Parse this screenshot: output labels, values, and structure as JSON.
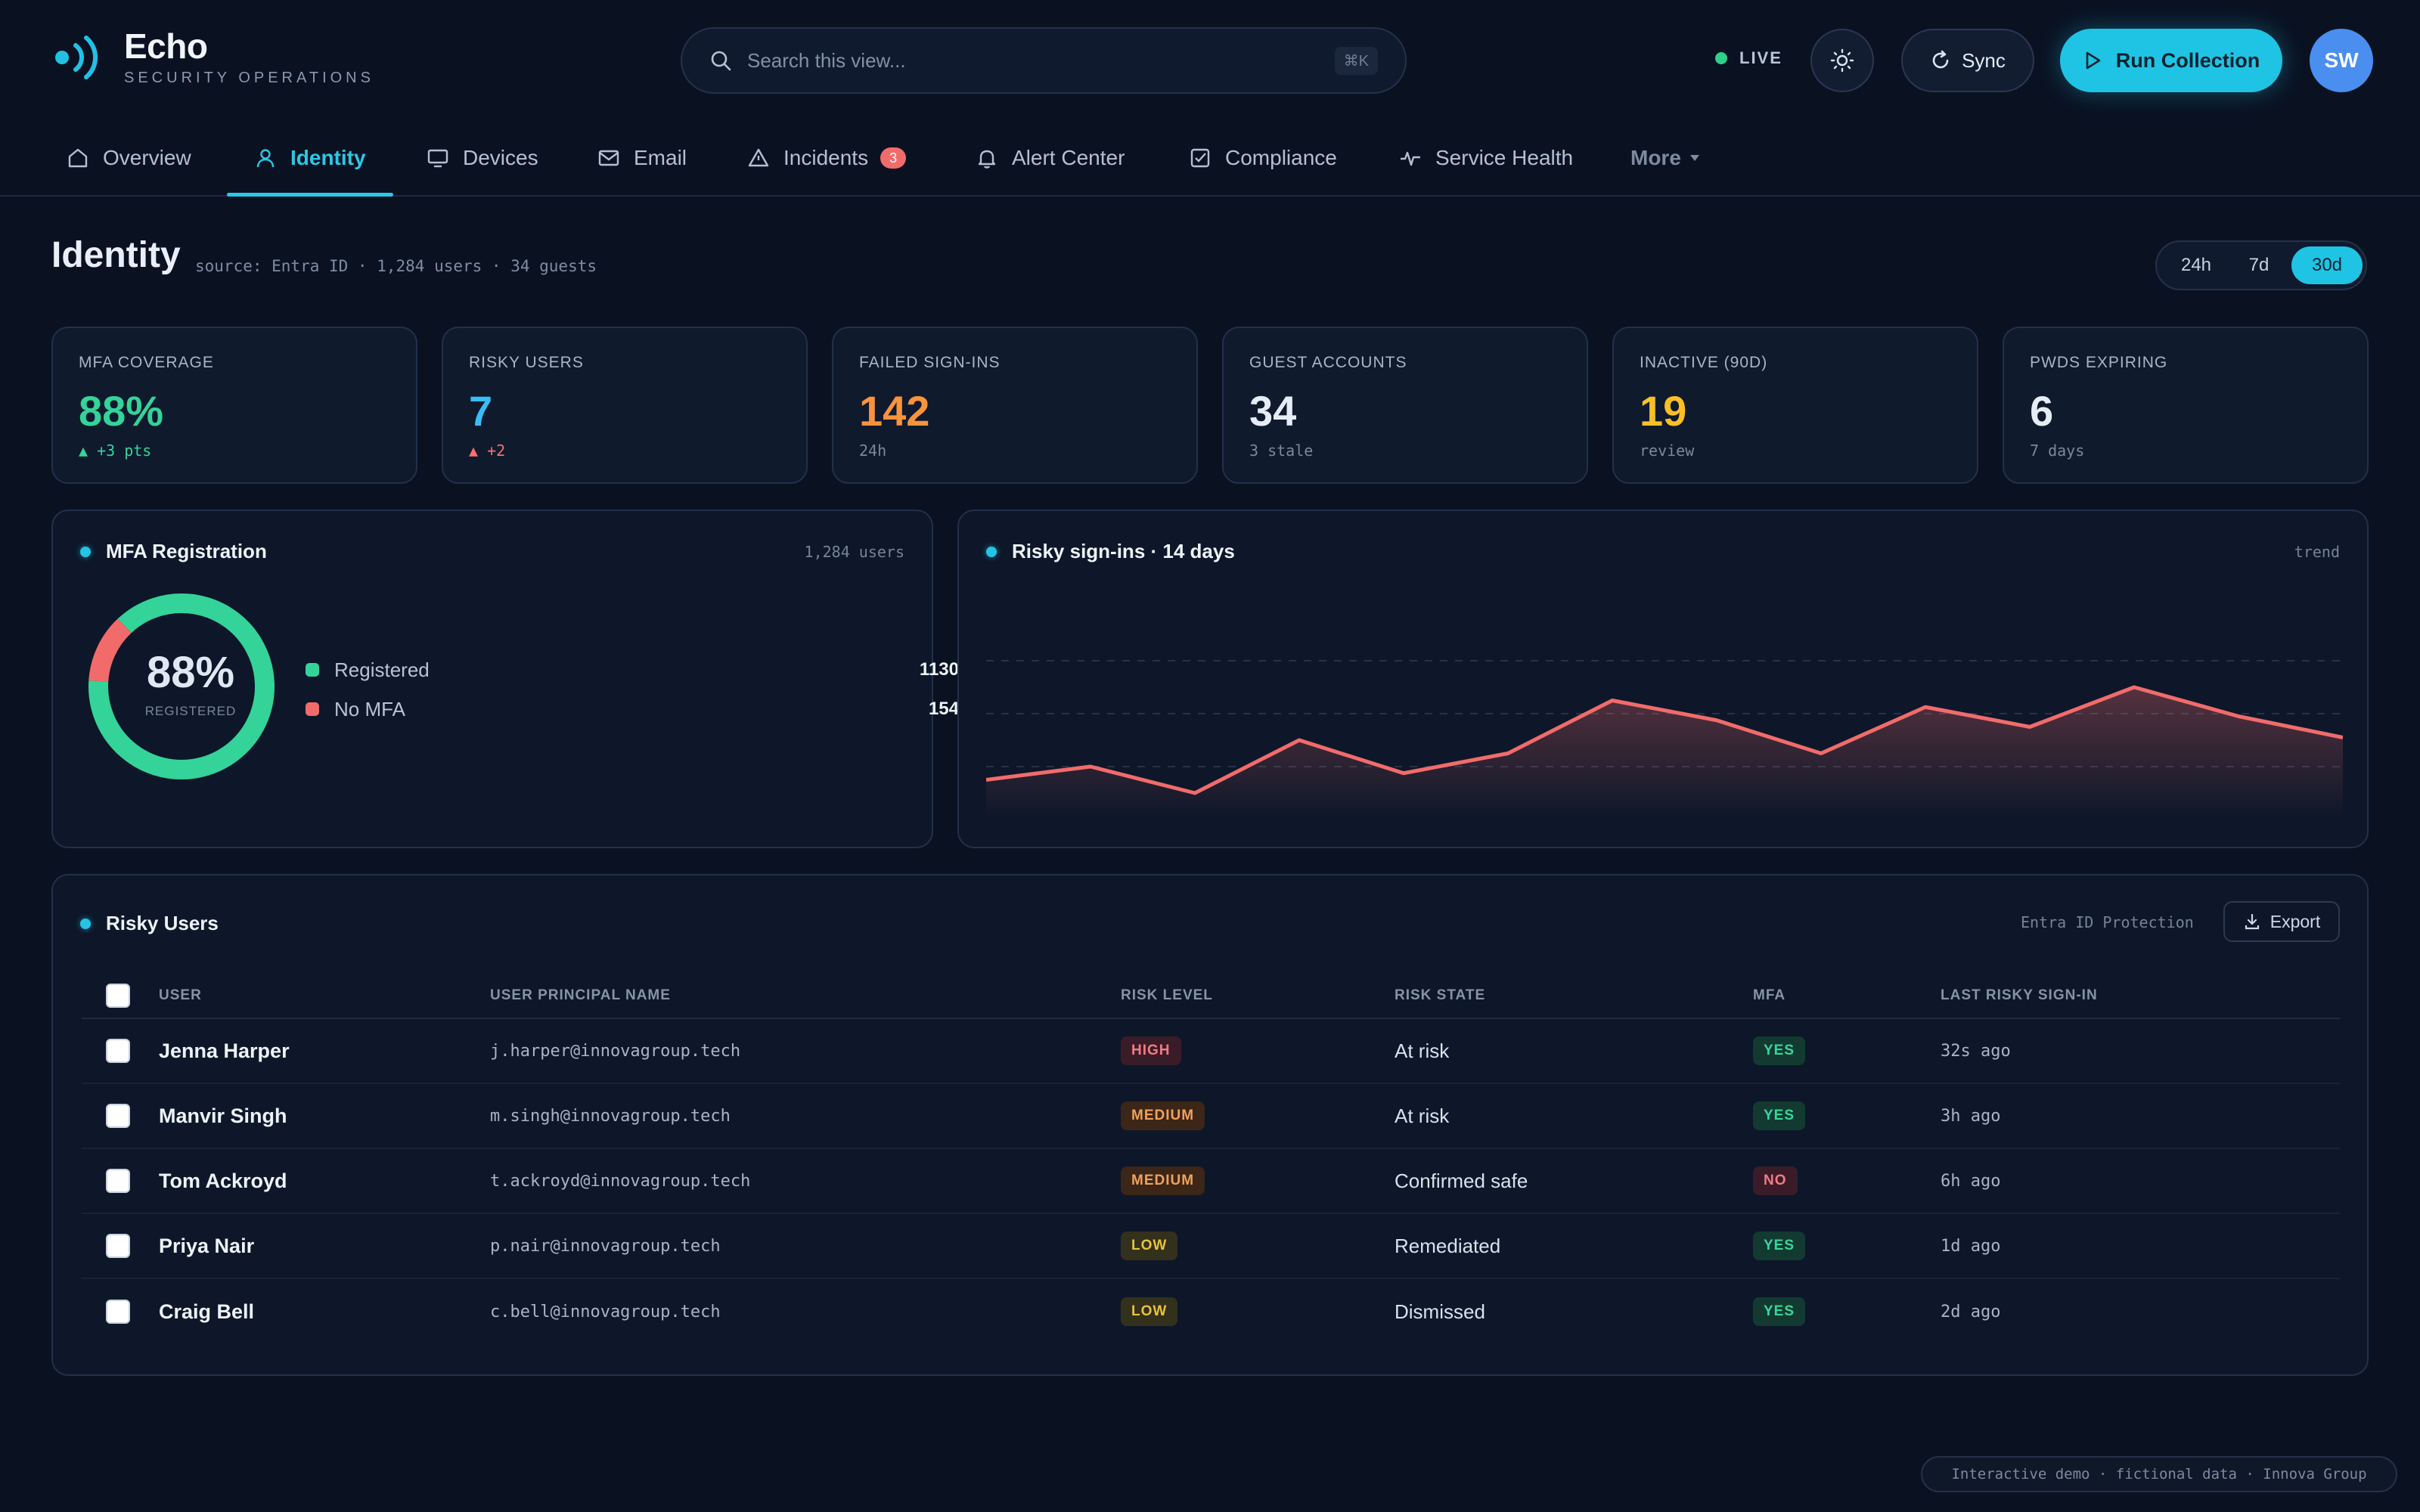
{
  "app": {
    "name": "Echo",
    "subtitle": "SECURITY OPERATIONS"
  },
  "search": {
    "placeholder": "Search this view...",
    "shortcut": "⌘K"
  },
  "header": {
    "live_label": "LIVE",
    "sync_label": "Sync",
    "run_label": "Run Collection",
    "avatar_initials": "SW",
    "accent_color": "#1fc4e4"
  },
  "nav": {
    "tabs": [
      {
        "label": "Overview",
        "icon": "home-icon"
      },
      {
        "label": "Identity",
        "icon": "user-icon",
        "active": true
      },
      {
        "label": "Devices",
        "icon": "monitor-icon"
      },
      {
        "label": "Email",
        "icon": "mail-icon"
      },
      {
        "label": "Incidents",
        "icon": "warning-icon",
        "badge": "3"
      },
      {
        "label": "Alert Center",
        "icon": "bell-icon"
      },
      {
        "label": "Compliance",
        "icon": "checkbox-icon"
      },
      {
        "label": "Service Health",
        "icon": "pulse-icon"
      },
      {
        "label": "More",
        "icon": "chevron-down-icon"
      }
    ]
  },
  "page": {
    "title": "Identity",
    "source": "source: Entra ID · 1,284 users · 34 guests",
    "ranges": [
      "24h",
      "7d",
      "30d"
    ],
    "selected_range": "30d"
  },
  "kpis": [
    {
      "label": "MFA COVERAGE",
      "value": "88%",
      "sub": "▲ +3 pts",
      "color": "#34d399",
      "sub_color": "#34d399"
    },
    {
      "label": "RISKY USERS",
      "value": "7",
      "sub": "▲ +2",
      "color": "#38bdf8",
      "sub_color": "#f87171"
    },
    {
      "label": "FAILED SIGN-INS",
      "value": "142",
      "sub": "24h",
      "color": "#fb923c",
      "sub_color": "#7b889d"
    },
    {
      "label": "GUEST ACCOUNTS",
      "value": "34",
      "sub": "3 stale",
      "color": "#e5ecf5",
      "sub_color": "#7b889d"
    },
    {
      "label": "INACTIVE (90D)",
      "value": "19",
      "sub": "review",
      "color": "#fbbf24",
      "sub_color": "#7b889d"
    },
    {
      "label": "PWDS EXPIRING",
      "value": "6",
      "sub": "7 days",
      "color": "#e5ecf5",
      "sub_color": "#7b889d"
    }
  ],
  "mfa_panel": {
    "title": "MFA Registration",
    "meta": "1,284 users",
    "center_value": "88%",
    "center_label": "REGISTERED",
    "legend": [
      {
        "label": "Registered",
        "value": "1130",
        "color": "#34d399"
      },
      {
        "label": "No MFA",
        "value": "154",
        "color": "#f26b6b"
      }
    ]
  },
  "trend_panel": {
    "title": "Risky sign-ins · 14 days",
    "meta": "trend",
    "line_color": "#f26b6b"
  },
  "chart_data": [
    {
      "type": "pie",
      "categories": [
        "Registered",
        "No MFA"
      ],
      "values": [
        1130,
        154
      ],
      "title": "MFA Registration"
    },
    {
      "type": "area",
      "title": "Risky sign-ins · 14 days",
      "x": [
        1,
        2,
        3,
        4,
        5,
        6,
        7,
        8,
        9,
        10,
        11,
        12,
        13,
        14
      ],
      "values": [
        3,
        4,
        2,
        6,
        3.5,
        5,
        9,
        7.5,
        5,
        8.5,
        7,
        10,
        7.8,
        6.2
      ],
      "ylim": [
        0,
        16
      ],
      "grid": true
    }
  ],
  "risky_users": {
    "title": "Risky Users",
    "meta": "Entra ID Protection",
    "export_label": "Export",
    "columns": [
      "USER",
      "USER PRINCIPAL NAME",
      "RISK LEVEL",
      "RISK STATE",
      "MFA",
      "LAST RISKY SIGN-IN"
    ],
    "rows": [
      {
        "user": "Jenna Harper",
        "upn": "j.harper@innovagroup.tech",
        "risk": "HIGH",
        "state": "At risk",
        "mfa": "YES",
        "last": "32s ago"
      },
      {
        "user": "Manvir Singh",
        "upn": "m.singh@innovagroup.tech",
        "risk": "MEDIUM",
        "state": "At risk",
        "mfa": "YES",
        "last": "3h ago"
      },
      {
        "user": "Tom Ackroyd",
        "upn": "t.ackroyd@innovagroup.tech",
        "risk": "MEDIUM",
        "state": "Confirmed safe",
        "mfa": "NO",
        "last": "6h ago"
      },
      {
        "user": "Priya Nair",
        "upn": "p.nair@innovagroup.tech",
        "risk": "LOW",
        "state": "Remediated",
        "mfa": "YES",
        "last": "1d ago"
      },
      {
        "user": "Craig Bell",
        "upn": "c.bell@innovagroup.tech",
        "risk": "LOW",
        "state": "Dismissed",
        "mfa": "YES",
        "last": "2d ago"
      }
    ]
  },
  "footer": {
    "note": "Interactive demo · fictional data · Innova Group"
  }
}
